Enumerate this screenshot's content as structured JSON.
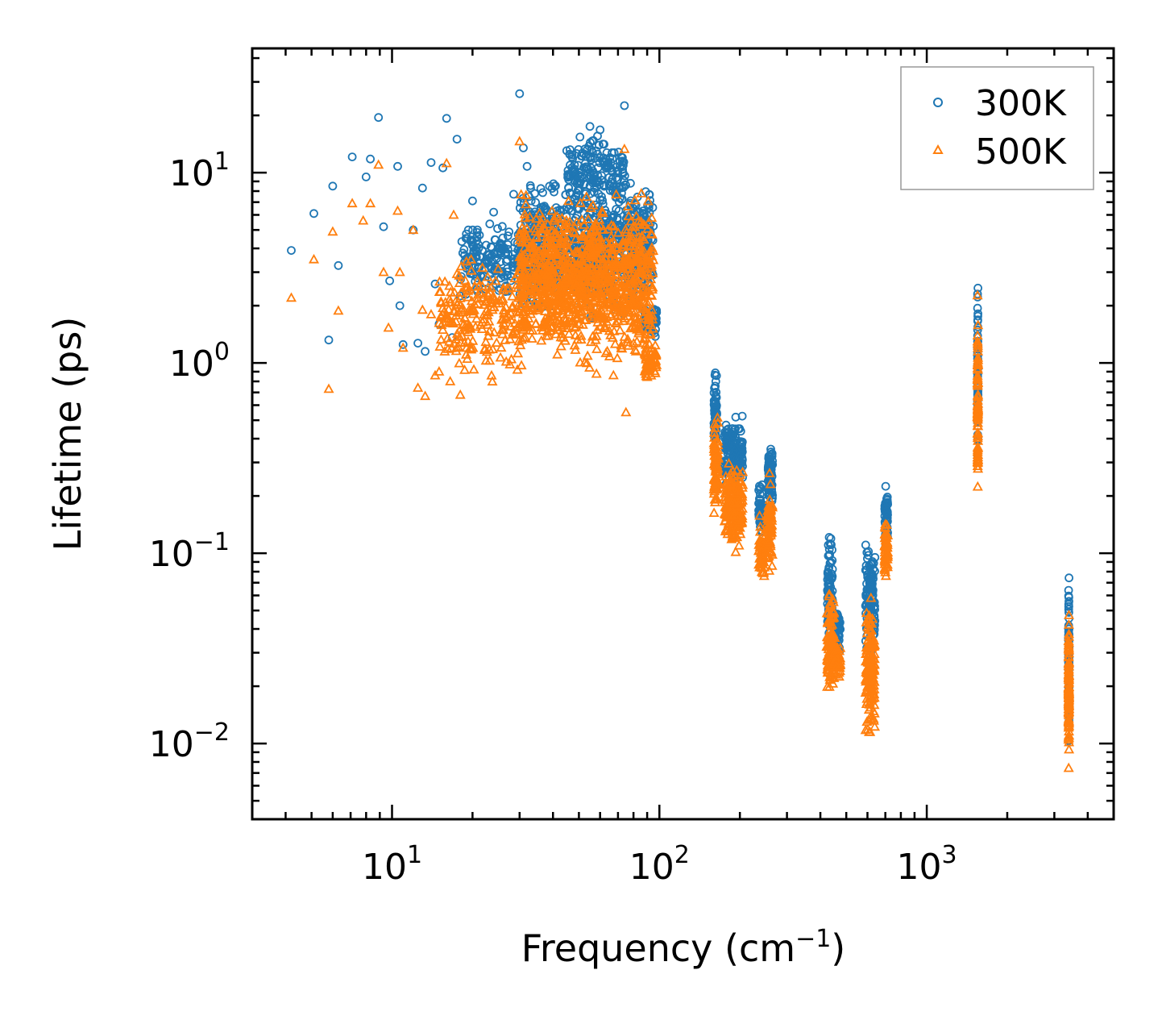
{
  "chart_data": {
    "type": "scatter",
    "xscale": "log",
    "yscale": "log",
    "xlabel": "Frequency (cm",
    "xlabel_sup": "−1",
    "xlabel_tail": ")",
    "ylabel": "Lifetime (ps)",
    "xlim": [
      3.0,
      5000
    ],
    "ylim": [
      0.004,
      45
    ],
    "x_tick_labels": [
      {
        "value": 10,
        "base": "10",
        "exp": "1"
      },
      {
        "value": 100,
        "base": "10",
        "exp": "2"
      },
      {
        "value": 1000,
        "base": "10",
        "exp": "3"
      }
    ],
    "y_tick_labels": [
      {
        "value": 10,
        "base": "10",
        "exp": "1"
      },
      {
        "value": 1,
        "base": "10",
        "exp": "0"
      },
      {
        "value": 0.1,
        "base": "10",
        "exp": "−1"
      },
      {
        "value": 0.01,
        "base": "10",
        "exp": "−2"
      }
    ],
    "legend_position": "top-right",
    "series": [
      {
        "name": "300K",
        "marker": "circle",
        "color": "#1f77b4",
        "points": [
          [
            4.2,
            3.9
          ],
          [
            5.1,
            6.1
          ],
          [
            5.8,
            1.32
          ],
          [
            6.0,
            8.5
          ],
          [
            6.3,
            3.25
          ],
          [
            7.1,
            12.1
          ],
          [
            8.0,
            9.5
          ],
          [
            8.3,
            11.8
          ],
          [
            8.9,
            19.5
          ],
          [
            9.3,
            5.2
          ],
          [
            9.8,
            2.7
          ],
          [
            10.5,
            10.8
          ],
          [
            10.7,
            2.0
          ],
          [
            11.0,
            1.25
          ],
          [
            12.0,
            5.0
          ],
          [
            12.5,
            1.27
          ],
          [
            13.0,
            8.3
          ],
          [
            13.3,
            1.15
          ],
          [
            14.0,
            11.3
          ],
          [
            14.5,
            2.6
          ],
          [
            15.0,
            1.6
          ],
          [
            15.5,
            10.6
          ],
          [
            16.0,
            19.3
          ],
          [
            16.8,
            1.36
          ],
          [
            17.5,
            15.0
          ],
          [
            18.0,
            2.25
          ],
          [
            20.0,
            7.1
          ],
          [
            21.0,
            3.2
          ],
          [
            24.0,
            6.2
          ],
          [
            28.5,
            7.7
          ],
          [
            30.0,
            26.0
          ],
          [
            31.0,
            13.5
          ],
          [
            32.0,
            10.8
          ],
          [
            33.0,
            8.3
          ],
          [
            55.0,
            17.5
          ],
          [
            60.0,
            16.8
          ],
          [
            74.0,
            22.5
          ]
        ],
        "clusters": [
          {
            "x": [
              18,
              30
            ],
            "y": [
              2.0,
              6.0
            ],
            "n": 160
          },
          {
            "x": [
              30,
              95
            ],
            "y": [
              1.5,
              11.0
            ],
            "n": 900
          },
          {
            "x": [
              45,
              75
            ],
            "y": [
              6.0,
              18.0
            ],
            "n": 160
          },
          {
            "x": [
              88,
              98
            ],
            "y": [
              1.3,
              2.2
            ],
            "n": 60
          },
          {
            "x": [
              160,
              164
            ],
            "y": [
              0.3,
              1.0
            ],
            "n": 60
          },
          {
            "x": [
              175,
              205
            ],
            "y": [
              0.2,
              0.58
            ],
            "n": 160
          },
          {
            "x": [
              235,
              245
            ],
            "y": [
              0.11,
              0.25
            ],
            "n": 50
          },
          {
            "x": [
              255,
              265
            ],
            "y": [
              0.15,
              0.44
            ],
            "n": 70
          },
          {
            "x": [
              425,
              445
            ],
            "y": [
              0.03,
              0.15
            ],
            "n": 80
          },
          {
            "x": [
              445,
              475
            ],
            "y": [
              0.025,
              0.06
            ],
            "n": 60
          },
          {
            "x": [
              590,
              640
            ],
            "y": [
              0.025,
              0.13
            ],
            "n": 120
          },
          {
            "x": [
              695,
              715
            ],
            "y": [
              0.09,
              0.24
            ],
            "n": 60
          },
          {
            "x": [
              1548,
              1555
            ],
            "y": [
              0.25,
              3.1
            ],
            "n": 70
          },
          {
            "x": [
              3390,
              3405
            ],
            "y": [
              0.008,
              0.097
            ],
            "n": 90
          }
        ]
      },
      {
        "name": "500K",
        "marker": "triangle",
        "color": "#ff7f0e",
        "points": [
          [
            4.2,
            2.2
          ],
          [
            5.1,
            3.5
          ],
          [
            5.8,
            0.73
          ],
          [
            6.0,
            4.9
          ],
          [
            6.3,
            1.88
          ],
          [
            7.1,
            6.9
          ],
          [
            7.8,
            5.6
          ],
          [
            8.3,
            6.9
          ],
          [
            8.9,
            11.0
          ],
          [
            9.3,
            3.0
          ],
          [
            9.7,
            1.53
          ],
          [
            10.5,
            6.3
          ],
          [
            10.7,
            3.0
          ],
          [
            11.0,
            1.2
          ],
          [
            12.0,
            5.0
          ],
          [
            12.5,
            0.74
          ],
          [
            13.0,
            1.9
          ],
          [
            13.3,
            0.67
          ],
          [
            14.0,
            1.8
          ],
          [
            14.5,
            0.86
          ],
          [
            15.0,
            0.9
          ],
          [
            16.0,
            11.2
          ],
          [
            16.5,
            0.8
          ],
          [
            17.0,
            6.0
          ],
          [
            18.0,
            0.68
          ],
          [
            19.0,
            1.2
          ],
          [
            30.0,
            14.6
          ],
          [
            74.0,
            13.3
          ],
          [
            75.0,
            0.55
          ]
        ],
        "clusters": [
          {
            "x": [
              15,
              30
            ],
            "y": [
              0.7,
              4.5
            ],
            "n": 220
          },
          {
            "x": [
              30,
              95
            ],
            "y": [
              0.8,
              9.0
            ],
            "n": 1100
          },
          {
            "x": [
              88,
              98
            ],
            "y": [
              0.78,
              1.3
            ],
            "n": 60
          },
          {
            "x": [
              160,
              166
            ],
            "y": [
              0.13,
              0.6
            ],
            "n": 80
          },
          {
            "x": [
              175,
              205
            ],
            "y": [
              0.09,
              0.36
            ],
            "n": 180
          },
          {
            "x": [
              235,
              248
            ],
            "y": [
              0.065,
              0.16
            ],
            "n": 60
          },
          {
            "x": [
              252,
              265
            ],
            "y": [
              0.065,
              0.27
            ],
            "n": 80
          },
          {
            "x": [
              422,
              450
            ],
            "y": [
              0.016,
              0.075
            ],
            "n": 110
          },
          {
            "x": [
              450,
              475
            ],
            "y": [
              0.02,
              0.04
            ],
            "n": 50
          },
          {
            "x": [
              590,
              640
            ],
            "y": [
              0.009,
              0.07
            ],
            "n": 160
          },
          {
            "x": [
              695,
              715
            ],
            "y": [
              0.07,
              0.16
            ],
            "n": 60
          },
          {
            "x": [
              1548,
              1555
            ],
            "y": [
              0.17,
              2.6
            ],
            "n": 80
          },
          {
            "x": [
              3390,
              3405
            ],
            "y": [
              0.006,
              0.062
            ],
            "n": 110
          }
        ]
      }
    ]
  }
}
